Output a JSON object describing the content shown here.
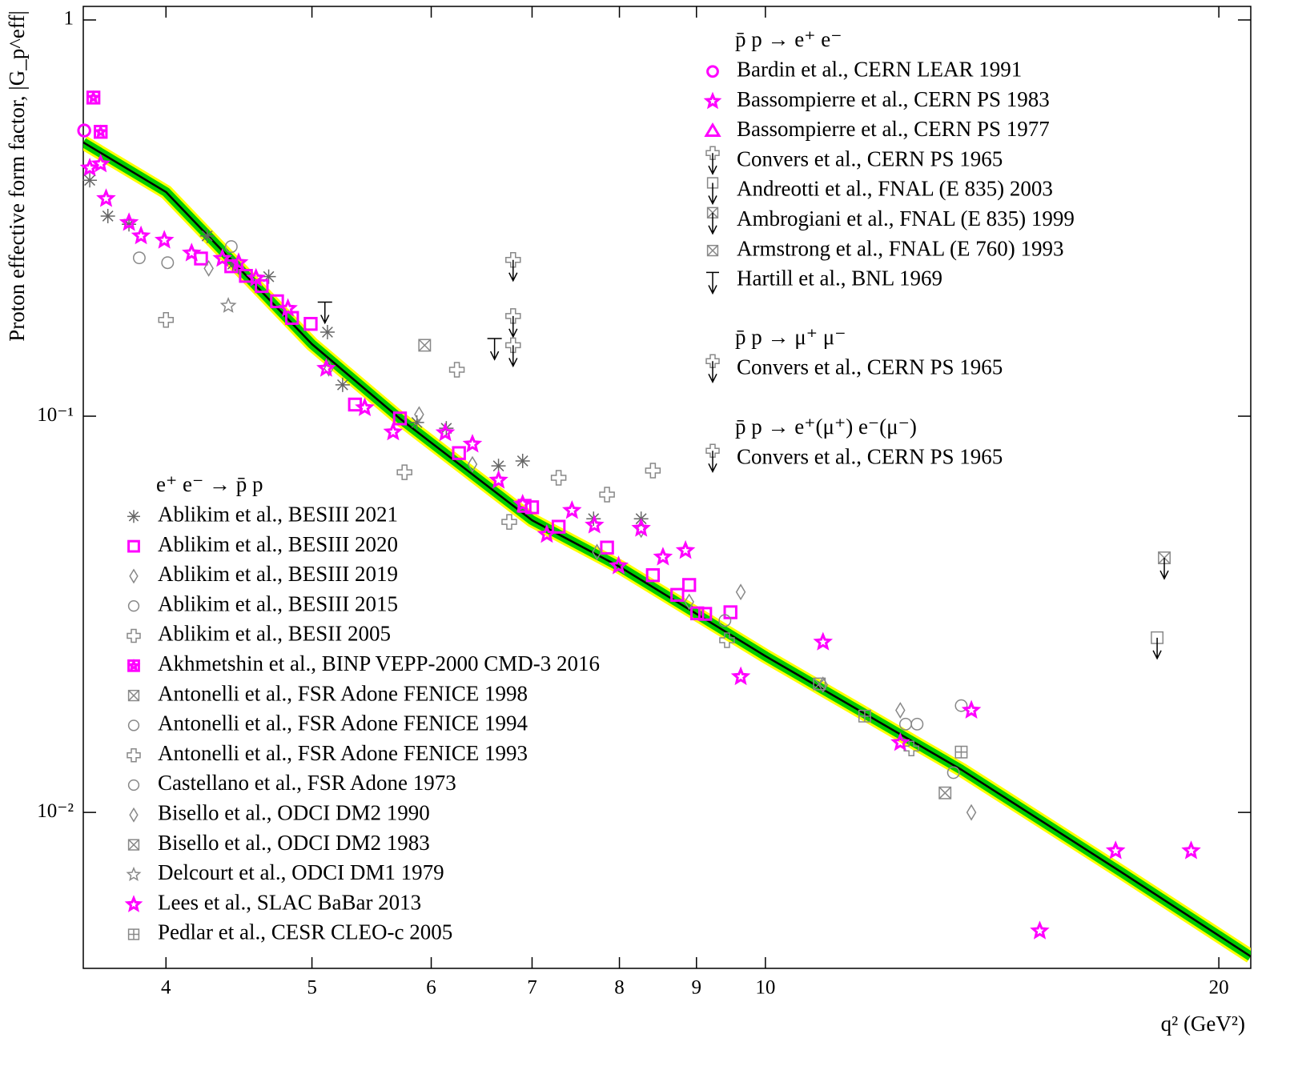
{
  "chart_data": {
    "type": "scatter",
    "log_x": true,
    "log_y": true,
    "xlabel": "q² (GeV²)",
    "ylabel": "Proton effective form factor, |G_p^eff|",
    "xlim": [
      3.525,
      21.0
    ],
    "ylim": [
      0.00404,
      1.082
    ],
    "xticks": [
      4,
      5,
      6,
      7,
      8,
      9,
      10,
      20
    ],
    "yticks": [
      1,
      {
        "value": 0.1,
        "label": "10⁻¹"
      },
      {
        "value": 0.01,
        "label": "10⁻²"
      }
    ],
    "fit": {
      "color": "#000000",
      "band_colors": [
        "#ffff00",
        "#00cc00"
      ],
      "x": [
        3.525,
        4,
        5,
        5.72,
        7,
        8,
        10,
        13.5,
        17.2,
        21.0
      ],
      "values": [
        0.491,
        0.368,
        0.152,
        0.0986,
        0.0546,
        0.0417,
        0.0248,
        0.0128,
        0.0071,
        0.00433
      ]
    },
    "groups": [
      {
        "title": "p̄ p → e⁺ e⁻",
        "series": [
          {
            "name": "Bardin et al., CERN LEAR 1991",
            "color": "#ff00ff",
            "marker": "circle",
            "x": [
              3.53
            ],
            "values": [
              0.526
            ]
          },
          {
            "name": "Bassompierre et al., CERN PS 1983",
            "color": "#ff00ff",
            "marker": "star",
            "x": [
              3.56
            ],
            "values": [
              0.423
            ]
          },
          {
            "name": "Bassompierre et al., CERN PS 1977",
            "color": "#ff00ff",
            "marker": "triangle",
            "x": [],
            "values": []
          },
          {
            "name": "Convers et al., CERN PS 1965",
            "color": "#888888",
            "marker": "cross",
            "limit": true,
            "x": [
              6.8,
              6.8
            ],
            "values": [
              0.248,
              0.179
            ]
          },
          {
            "name": "Andreotti et al.,  FNAL (E 835) 2003",
            "color": "#888888",
            "marker": "square",
            "limit": true,
            "x": [
              18.2
            ],
            "values": [
              0.0276
            ]
          },
          {
            "name": "Ambrogiani et al.,  FNAL (E 835) 1999",
            "color": "#888888",
            "marker": "squarex",
            "limit": true,
            "x": [
              18.4
            ],
            "values": [
              0.0439
            ]
          },
          {
            "name": "Armstrong et al.,  FNAL (E 760) 1993",
            "color": "#888888",
            "marker": "squarex",
            "x": [
              5.94
            ],
            "values": [
              0.151
            ]
          },
          {
            "name": "Hartill et al., BNL 1969",
            "color": "#000000",
            "marker": "bar",
            "limit": true,
            "x": [
              5.1,
              6.61
            ],
            "values": [
              0.194,
              0.157
            ]
          }
        ]
      },
      {
        "title": "p̄ p → μ⁺ μ⁻",
        "series": [
          {
            "name": "Convers et al., CERN PS 1965",
            "color": "#888888",
            "marker": "cross",
            "limit": true,
            "x": [
              6.8
            ],
            "values": [
              0.151
            ]
          }
        ]
      },
      {
        "title": "p̄ p → e⁺(μ⁺) e⁻(μ⁻)",
        "series": [
          {
            "name": "Convers et al., CERN PS 1965",
            "color": "#888888",
            "marker": "cross",
            "limit": true,
            "x": [],
            "values": []
          }
        ]
      },
      {
        "title": "e⁺ e⁻ → p̄ p",
        "series": [
          {
            "name": "Ablikim et al.,  BESIII 2021",
            "color": "#666666",
            "marker": "asterisk",
            "x": [
              3.56,
              3.66,
              3.78,
              4.26,
              4.43,
              4.68,
              5.12,
              5.24,
              5.87,
              6.14,
              6.65,
              6.9,
              7.69,
              8.27
            ],
            "values": [
              0.394,
              0.32,
              0.305,
              0.285,
              0.242,
              0.225,
              0.163,
              0.12,
              0.0964,
              0.0932,
              0.0749,
              0.0771,
              0.0551,
              0.0551
            ]
          },
          {
            "name": "Ablikim et al.,  BESIII 2020",
            "color": "#ff00ff",
            "marker": "square",
            "x": [
              4.22,
              4.42,
              4.52,
              4.63,
              4.74,
              4.85,
              4.99,
              5.34,
              5.72,
              6.26,
              6.92,
              7.0,
              7.29,
              7.85,
              8.42,
              8.74,
              8.9,
              9.01,
              9.12,
              9.48
            ],
            "values": [
              0.25,
              0.239,
              0.226,
              0.213,
              0.195,
              0.177,
              0.171,
              0.107,
              0.0987,
              0.0807,
              0.0594,
              0.0589,
              0.0526,
              0.0466,
              0.0397,
              0.0354,
              0.0375,
              0.0318,
              0.0317,
              0.032
            ]
          },
          {
            "name": "Ablikim et al.,  BESIII 2019",
            "color": "#888888",
            "marker": "diamond",
            "x": [
              4.27,
              5.13,
              5.89,
              6.39,
              7.73,
              8.27,
              8.9,
              9.63,
              10.92,
              12.29
            ],
            "values": [
              0.236,
              0.132,
              0.101,
              0.0756,
              0.0454,
              0.0517,
              0.034,
              0.036,
              0.021,
              0.0181
            ]
          },
          {
            "name": "Ablikim et al.,  BESIII 2015",
            "color": "#888888",
            "marker": "circle",
            "x": [
              3.84,
              4.01,
              9.4,
              12.61,
              13.49,
              13.33
            ],
            "values": [
              0.251,
              0.244,
              0.0305,
              0.0167,
              0.0186,
              0.0126
            ]
          },
          {
            "name": "Ablikim et al.,  BESII 2005",
            "color": "#888888",
            "marker": "cross",
            "x": [
              4.0,
              5.76,
              6.24,
              7.29,
              7.85,
              8.42,
              6.76,
              9.43
            ],
            "values": [
              0.175,
              0.0722,
              0.131,
              0.0699,
              0.0634,
              0.0729,
              0.0541,
              0.0272
            ]
          },
          {
            "name": "Akhmetshin et al., BINP VEPP-2000 CMD-3 2016",
            "color": "#ff00ff",
            "marker": "squarestar",
            "x": [
              3.58,
              3.62
            ],
            "values": [
              0.637,
              0.522
            ]
          },
          {
            "name": "Antonelli et al., FSR Adone FENICE 1998",
            "color": "#888888",
            "marker": "squarex",
            "x": [
              10.86
            ],
            "values": [
              0.0211
            ]
          },
          {
            "name": "Antonelli et al., FSR Adone FENICE 1994",
            "color": "#888888",
            "marker": "circle",
            "x": [
              12.39
            ],
            "values": [
              0.0167
            ]
          },
          {
            "name": "Antonelli et al., FSR Adone FENICE 1993",
            "color": "#888888",
            "marker": "cross",
            "x": [
              12.5
            ],
            "values": [
              0.0145
            ]
          },
          {
            "name": "Castellano et al., FSR Adone 1973",
            "color": "#888888",
            "marker": "circle",
            "x": [
              4.42
            ],
            "values": [
              0.268
            ]
          },
          {
            "name": "Bisello et al., ODCI DM2 1990",
            "color": "#888888",
            "marker": "diamond",
            "x": [
              13.7
            ],
            "values": [
              0.01
            ]
          },
          {
            "name": "Bisello et al., ODCI DM2 1983",
            "color": "#888888",
            "marker": "squarex",
            "x": [
              13.16
            ],
            "values": [
              0.0112
            ]
          },
          {
            "name": "Delcourt et al.,  ODCI DM1 1979",
            "color": "#888888",
            "marker": "star",
            "x": [
              4.4
            ],
            "values": [
              0.19
            ]
          },
          {
            "name": "Lees et al., SLAC BaBar 2013",
            "color": "#ff00ff",
            "marker": "star",
            "x": [
              3.62,
              3.65,
              3.78,
              3.85,
              3.99,
              4.16,
              4.36,
              4.47,
              4.59,
              4.82,
              5.11,
              5.42,
              5.66,
              6.13,
              6.39,
              6.65,
              6.9,
              7.16,
              7.44,
              7.7,
              7.99,
              8.27,
              8.55,
              8.85,
              9.63,
              10.92,
              12.29,
              13.7,
              15.21,
              17.08,
              19.17
            ],
            "values": [
              0.433,
              0.354,
              0.308,
              0.285,
              0.278,
              0.258,
              0.25,
              0.244,
              0.223,
              0.187,
              0.132,
              0.105,
              0.0912,
              0.0908,
              0.085,
              0.0689,
              0.06,
              0.0503,
              0.0578,
              0.0531,
              0.0419,
              0.0521,
              0.0441,
              0.0458,
              0.022,
              0.0269,
              0.015,
              0.0181,
              0.00502,
              0.008,
              0.008
            ]
          },
          {
            "name": "Pedlar et al.,  CESR CLEO-c 2005",
            "color": "#888888",
            "marker": "squareplus",
            "x": [
              11.64,
              13.49
            ],
            "values": [
              0.0175,
              0.0142
            ]
          }
        ]
      }
    ]
  }
}
